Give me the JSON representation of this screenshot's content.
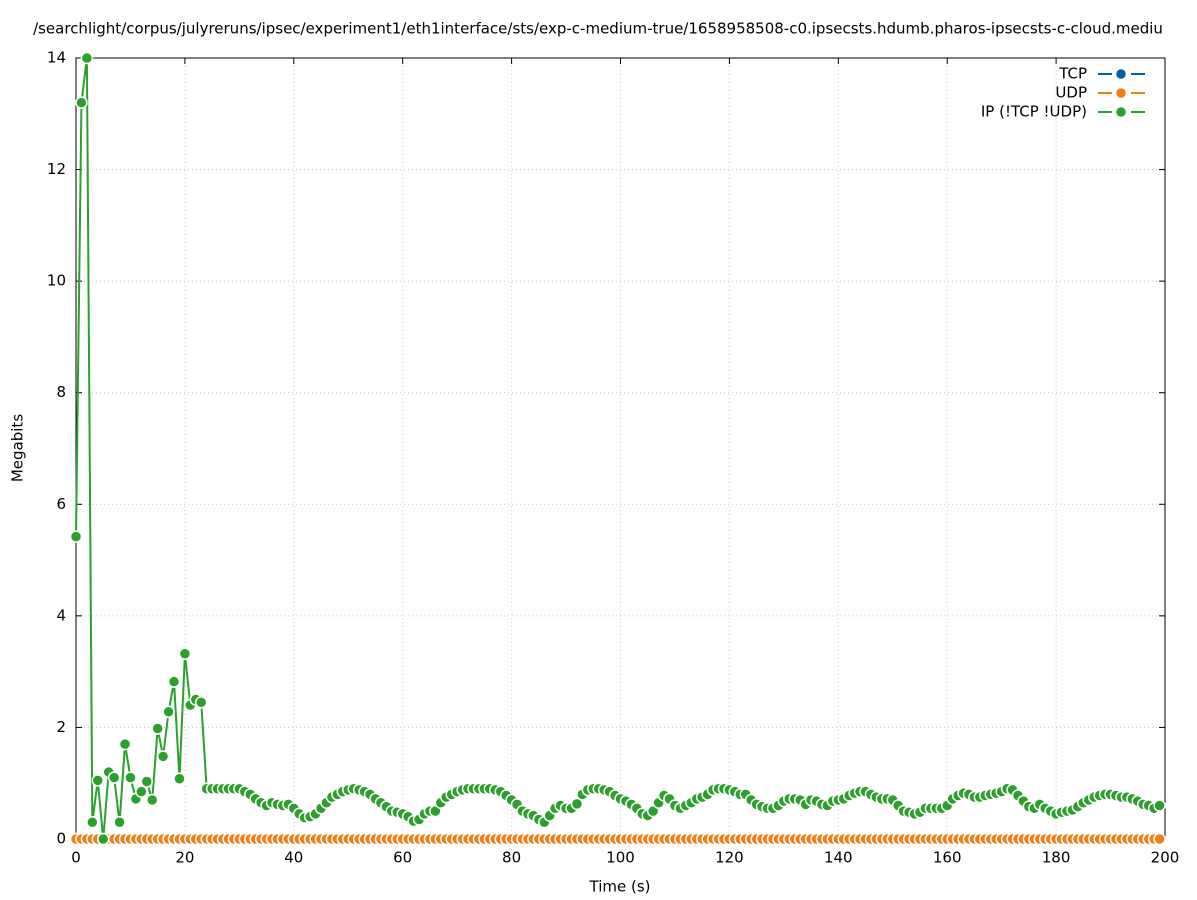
{
  "chart_data": {
    "type": "line",
    "title": "/searchlight/corpus/julyreruns/ipsec/experiment1/eth1interface/sts/exp-c-medium-true/1658958508-c0.ipsecsts.hdumb.pharos-ipsecsts-c-cloud.mediu",
    "x_label": "Time (s)",
    "y_label": "Megabits",
    "x": [
      0,
      1,
      2,
      3,
      4,
      5,
      6,
      7,
      8,
      9,
      10,
      11,
      12,
      13,
      14,
      15,
      16,
      17,
      18,
      19,
      20,
      21,
      22,
      23,
      24,
      25,
      26,
      27,
      28,
      29,
      30,
      31,
      32,
      33,
      34,
      35,
      36,
      37,
      38,
      39,
      40,
      41,
      42,
      43,
      44,
      45,
      46,
      47,
      48,
      49,
      50,
      51,
      52,
      53,
      54,
      55,
      56,
      57,
      58,
      59,
      60,
      61,
      62,
      63,
      64,
      65,
      66,
      67,
      68,
      69,
      70,
      71,
      72,
      73,
      74,
      75,
      76,
      77,
      78,
      79,
      80,
      81,
      82,
      83,
      84,
      85,
      86,
      87,
      88,
      89,
      90,
      91,
      92,
      93,
      94,
      95,
      96,
      97,
      98,
      99,
      100,
      101,
      102,
      103,
      104,
      105,
      106,
      107,
      108,
      109,
      110,
      111,
      112,
      113,
      114,
      115,
      116,
      117,
      118,
      119,
      120,
      121,
      122,
      123,
      124,
      125,
      126,
      127,
      128,
      129,
      130,
      131,
      132,
      133,
      134,
      135,
      136,
      137,
      138,
      139,
      140,
      141,
      142,
      143,
      144,
      145,
      146,
      147,
      148,
      149,
      150,
      151,
      152,
      153,
      154,
      155,
      156,
      157,
      158,
      159,
      160,
      161,
      162,
      163,
      164,
      165,
      166,
      167,
      168,
      169,
      170,
      171,
      172,
      173,
      174,
      175,
      176,
      177,
      178,
      179,
      180,
      181,
      182,
      183,
      184,
      185,
      186,
      187,
      188,
      189,
      190,
      191,
      192,
      193,
      194,
      195,
      196,
      197,
      198,
      199
    ],
    "series": [
      {
        "name": "TCP",
        "color": "#0060ad",
        "values": [
          0,
          0,
          0,
          0,
          0,
          0,
          0,
          0,
          0,
          0,
          0,
          0,
          0,
          0,
          0,
          0,
          0,
          0,
          0,
          0,
          0,
          0,
          0,
          0,
          0,
          0,
          0,
          0,
          0,
          0,
          0,
          0,
          0,
          0,
          0,
          0,
          0,
          0,
          0,
          0,
          0,
          0,
          0,
          0,
          0,
          0,
          0,
          0,
          0,
          0,
          0,
          0,
          0,
          0,
          0,
          0,
          0,
          0,
          0,
          0,
          0,
          0,
          0,
          0,
          0,
          0,
          0,
          0,
          0,
          0,
          0,
          0,
          0,
          0,
          0,
          0,
          0,
          0,
          0,
          0,
          0,
          0,
          0,
          0,
          0,
          0,
          0,
          0,
          0,
          0,
          0,
          0,
          0,
          0,
          0,
          0,
          0,
          0,
          0,
          0,
          0,
          0,
          0,
          0,
          0,
          0,
          0,
          0,
          0,
          0,
          0,
          0,
          0,
          0,
          0,
          0,
          0,
          0,
          0,
          0,
          0,
          0,
          0,
          0,
          0,
          0,
          0,
          0,
          0,
          0,
          0,
          0,
          0,
          0,
          0,
          0,
          0,
          0,
          0,
          0,
          0,
          0,
          0,
          0,
          0,
          0,
          0,
          0,
          0,
          0,
          0,
          0,
          0,
          0,
          0,
          0,
          0,
          0,
          0,
          0,
          0,
          0,
          0,
          0,
          0,
          0,
          0,
          0,
          0,
          0,
          0,
          0,
          0,
          0,
          0,
          0,
          0,
          0,
          0,
          0,
          0,
          0,
          0,
          0,
          0,
          0,
          0,
          0,
          0,
          0,
          0,
          0,
          0,
          0,
          0,
          0,
          0,
          0,
          0,
          0
        ]
      },
      {
        "name": "UDP",
        "color": "#f07f1a",
        "values": [
          0,
          0,
          0,
          0,
          0,
          0,
          0,
          0,
          0,
          0,
          0,
          0,
          0,
          0,
          0,
          0,
          0,
          0,
          0,
          0,
          0,
          0,
          0,
          0,
          0,
          0,
          0,
          0,
          0,
          0,
          0,
          0,
          0,
          0,
          0,
          0,
          0,
          0,
          0,
          0,
          0,
          0,
          0,
          0,
          0,
          0,
          0,
          0,
          0,
          0,
          0,
          0,
          0,
          0,
          0,
          0,
          0,
          0,
          0,
          0,
          0,
          0,
          0,
          0,
          0,
          0,
          0,
          0,
          0,
          0,
          0,
          0,
          0,
          0,
          0,
          0,
          0,
          0,
          0,
          0,
          0,
          0,
          0,
          0,
          0,
          0,
          0,
          0,
          0,
          0,
          0,
          0,
          0,
          0,
          0,
          0,
          0,
          0,
          0,
          0,
          0,
          0,
          0,
          0,
          0,
          0,
          0,
          0,
          0,
          0,
          0,
          0,
          0,
          0,
          0,
          0,
          0,
          0,
          0,
          0,
          0,
          0,
          0,
          0,
          0,
          0,
          0,
          0,
          0,
          0,
          0,
          0,
          0,
          0,
          0,
          0,
          0,
          0,
          0,
          0,
          0,
          0,
          0,
          0,
          0,
          0,
          0,
          0,
          0,
          0,
          0,
          0,
          0,
          0,
          0,
          0,
          0,
          0,
          0,
          0,
          0,
          0,
          0,
          0,
          0,
          0,
          0,
          0,
          0,
          0,
          0,
          0,
          0,
          0,
          0,
          0,
          0,
          0,
          0,
          0,
          0,
          0,
          0,
          0,
          0,
          0,
          0,
          0,
          0,
          0,
          0,
          0,
          0,
          0,
          0,
          0,
          0,
          0,
          0,
          0
        ]
      },
      {
        "name": "IP (!TCP  !UDP)",
        "color": "#2ca02c",
        "values": [
          5.42,
          13.2,
          14.0,
          0.3,
          1.05,
          0,
          1.2,
          1.1,
          0.3,
          1.7,
          1.1,
          0.72,
          0.85,
          1.03,
          0.7,
          1.98,
          1.48,
          2.28,
          2.82,
          1.08,
          3.32,
          2.4,
          2.5,
          2.45,
          0.9,
          0.9,
          0.9,
          0.9,
          0.9,
          0.9,
          0.9,
          0.85,
          0.8,
          0.72,
          0.65,
          0.6,
          0.65,
          0.62,
          0.6,
          0.62,
          0.55,
          0.45,
          0.38,
          0.4,
          0.45,
          0.55,
          0.65,
          0.75,
          0.8,
          0.85,
          0.88,
          0.9,
          0.88,
          0.85,
          0.8,
          0.72,
          0.65,
          0.58,
          0.5,
          0.48,
          0.45,
          0.4,
          0.32,
          0.35,
          0.45,
          0.5,
          0.5,
          0.65,
          0.75,
          0.8,
          0.85,
          0.88,
          0.9,
          0.9,
          0.9,
          0.9,
          0.9,
          0.88,
          0.85,
          0.78,
          0.7,
          0.62,
          0.5,
          0.45,
          0.42,
          0.35,
          0.3,
          0.42,
          0.55,
          0.6,
          0.55,
          0.55,
          0.63,
          0.8,
          0.88,
          0.9,
          0.9,
          0.88,
          0.85,
          0.78,
          0.72,
          0.68,
          0.62,
          0.55,
          0.45,
          0.42,
          0.5,
          0.65,
          0.78,
          0.72,
          0.6,
          0.55,
          0.6,
          0.65,
          0.72,
          0.75,
          0.8,
          0.88,
          0.9,
          0.9,
          0.88,
          0.85,
          0.8,
          0.8,
          0.7,
          0.62,
          0.58,
          0.55,
          0.55,
          0.6,
          0.68,
          0.72,
          0.72,
          0.7,
          0.62,
          0.7,
          0.68,
          0.62,
          0.6,
          0.68,
          0.7,
          0.72,
          0.78,
          0.82,
          0.85,
          0.85,
          0.8,
          0.75,
          0.72,
          0.72,
          0.7,
          0.6,
          0.5,
          0.48,
          0.45,
          0.48,
          0.55,
          0.55,
          0.55,
          0.55,
          0.6,
          0.72,
          0.78,
          0.82,
          0.8,
          0.75,
          0.75,
          0.78,
          0.8,
          0.82,
          0.85,
          0.9,
          0.88,
          0.78,
          0.68,
          0.58,
          0.55,
          0.62,
          0.55,
          0.5,
          0.45,
          0.48,
          0.5,
          0.52,
          0.58,
          0.65,
          0.7,
          0.75,
          0.78,
          0.8,
          0.8,
          0.78,
          0.75,
          0.75,
          0.72,
          0.68,
          0.62,
          0.6,
          0.55,
          0.6
        ]
      }
    ],
    "xlim": [
      0,
      200
    ],
    "xticks": [
      0,
      20,
      40,
      60,
      80,
      100,
      120,
      140,
      160,
      180,
      200
    ],
    "ylim": [
      0,
      14
    ],
    "yticks": [
      0,
      2,
      4,
      6,
      8,
      10,
      12,
      14
    ],
    "grid": true,
    "legend": "top-right"
  }
}
